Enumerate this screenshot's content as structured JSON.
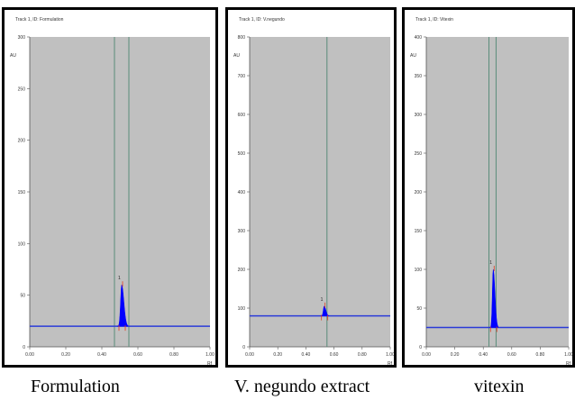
{
  "captions": [
    "Formulation",
    "V. negundo extract",
    "vitexin"
  ],
  "colors": {
    "plot_bg": "#c0c0c0",
    "baseline": "#2b3bd8",
    "peak": "#0000ff",
    "marker": "#e23b1e",
    "vline": "#5a8c7a",
    "frame": "#000000"
  },
  "chart_data": [
    {
      "type": "line",
      "title": "Track 1, ID: Formulation",
      "ylabel": "AU",
      "xlabel": "Rf",
      "xlim": [
        0.0,
        1.0
      ],
      "ylim": [
        0,
        300
      ],
      "x_ticks": [
        "0.00",
        "0.20",
        "0.40",
        "0.60",
        "0.80",
        "1.00"
      ],
      "y_ticks": [
        "0",
        "50",
        "100",
        "150",
        "200",
        "250",
        "300"
      ],
      "baseline": 20,
      "vlines": [
        0.47,
        0.55
      ],
      "peak": {
        "rf": 0.51,
        "height": 60,
        "label": "1"
      }
    },
    {
      "type": "line",
      "title": "Track 1, ID: V.negundo",
      "ylabel": "AU",
      "xlabel": "Rf",
      "xlim": [
        0.0,
        1.0
      ],
      "ylim": [
        0,
        800
      ],
      "x_ticks": [
        "0.00",
        "0.20",
        "0.40",
        "0.60",
        "0.80",
        "1.00"
      ],
      "y_ticks": [
        "0",
        "100",
        "200",
        "300",
        "400",
        "500",
        "600",
        "700",
        "800"
      ],
      "baseline": 80,
      "vlines": [
        0.55
      ],
      "peak": {
        "rf": 0.53,
        "height": 105,
        "label": "1"
      }
    },
    {
      "type": "line",
      "title": "Track 1, ID: Vitexin",
      "ylabel": "AU",
      "xlabel": "Rf",
      "xlim": [
        0.0,
        1.0
      ],
      "ylim": [
        0,
        400
      ],
      "x_ticks": [
        "0.00",
        "0.20",
        "0.40",
        "0.60",
        "0.80",
        "1.00"
      ],
      "y_ticks": [
        "0",
        "50",
        "100",
        "150",
        "200",
        "250",
        "300",
        "350",
        "400"
      ],
      "baseline": 25,
      "vlines": [
        0.44,
        0.49
      ],
      "peak": {
        "rf": 0.47,
        "height": 100,
        "label": "1"
      }
    }
  ]
}
